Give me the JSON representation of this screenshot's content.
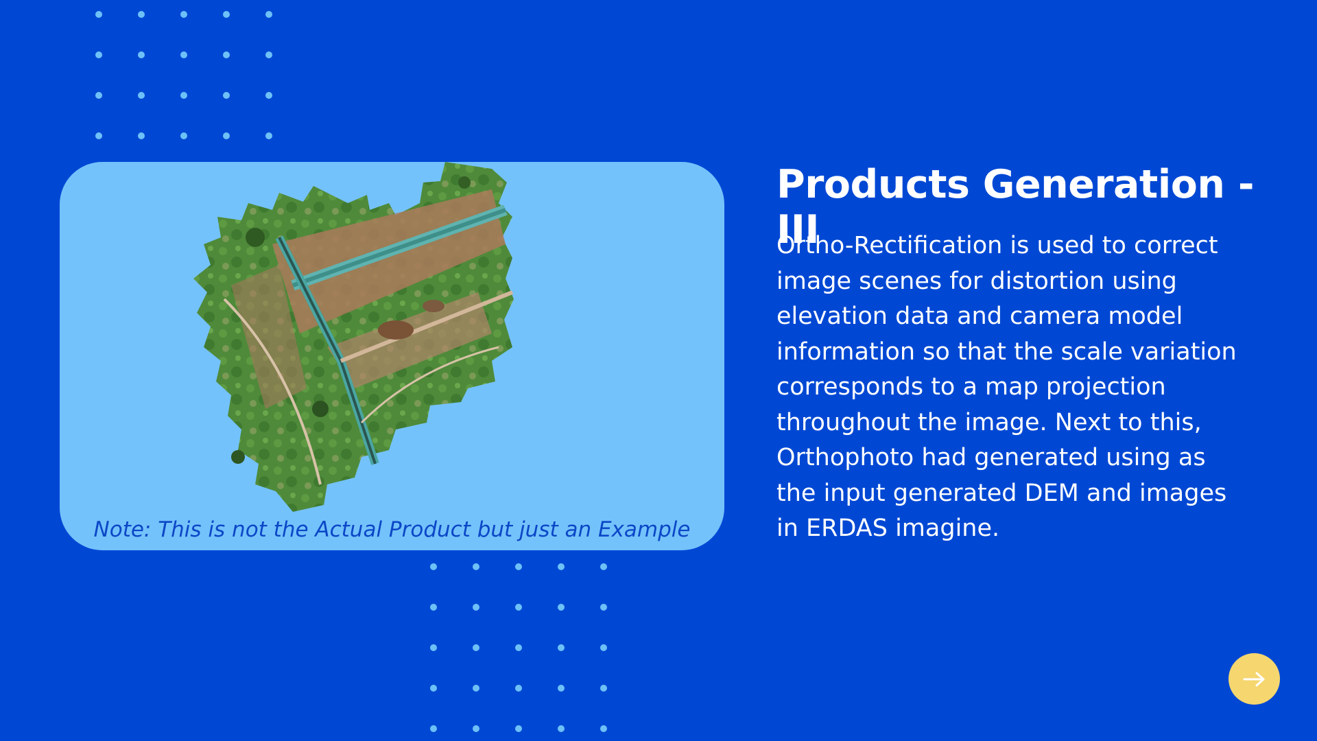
{
  "slide": {
    "title": "Products Generation - III",
    "body": "Ortho-Rectification is used to correct image scenes for distortion using elevation data and camera model information so that the scale variation corresponds to a map projection throughout the image. Next to this, Orthophoto had generated using as the input generated DEM and images in ERDAS imagine.",
    "image_note": "Note: This is not the Actual Product but just an Example",
    "next_icon": "arrow-right-icon"
  },
  "colors": {
    "background": "#0048d4",
    "card": "#74c2fb",
    "dots": "#6ec1f7",
    "note": "#0b47c7",
    "button": "#f5d66f"
  }
}
